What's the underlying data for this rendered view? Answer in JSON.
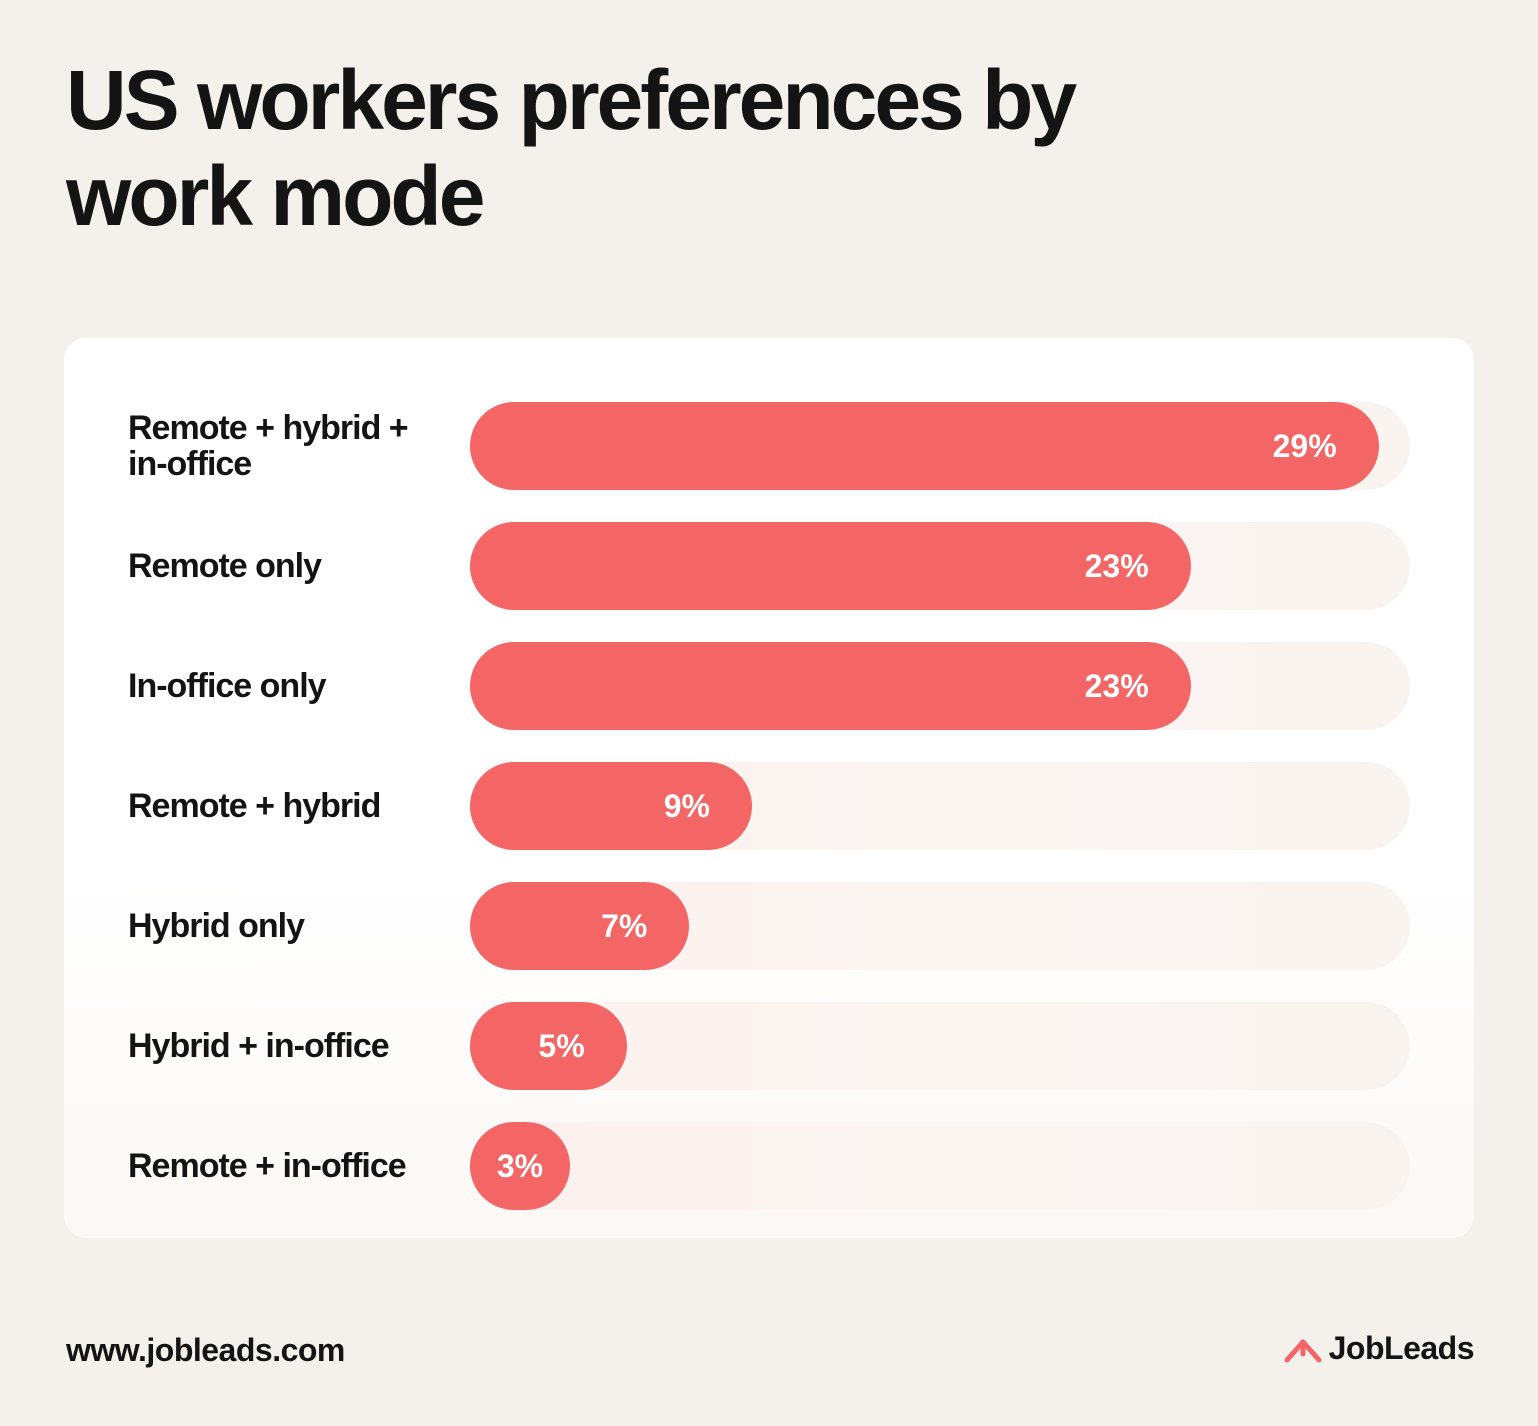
{
  "header": {
    "title": "US workers preferences by work mode"
  },
  "colors": {
    "background": "#f4f1ec",
    "card": "#ffffff",
    "bar": "#f46565",
    "track": "#fbf3f0",
    "text": "#141414"
  },
  "chart_data": {
    "type": "bar",
    "orientation": "horizontal",
    "title": "US workers preferences by work mode",
    "xlabel": "",
    "ylabel": "",
    "unit": "%",
    "xlim": [
      0,
      30
    ],
    "grid": false,
    "legend": "none",
    "categories": [
      "Remote + hybrid + in-office",
      "Remote only",
      "In-office only",
      "Remote + hybrid",
      "Hybrid only",
      "Hybrid + in-office",
      "Remote + in-office"
    ],
    "values": [
      29,
      23,
      23,
      9,
      7,
      5,
      3
    ],
    "value_labels": [
      "29%",
      "23%",
      "23%",
      "9%",
      "7%",
      "5%",
      "3%"
    ]
  },
  "footer": {
    "url": "www.jobleads.com",
    "brand": "JobLeads",
    "brand_icon": "jobleads-logo-icon"
  }
}
